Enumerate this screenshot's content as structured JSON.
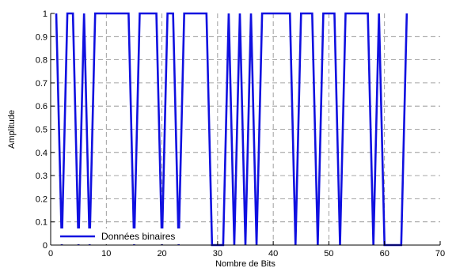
{
  "chart_data": {
    "type": "line",
    "xlabel": "Nombre de Bits",
    "ylabel": "Amplitude",
    "xlim": [
      0,
      70
    ],
    "ylim": [
      0,
      1
    ],
    "xticks": [
      "0",
      "10",
      "20",
      "30",
      "40",
      "50",
      "60",
      "70"
    ],
    "xtick_values": [
      0,
      10,
      20,
      30,
      40,
      50,
      60,
      70
    ],
    "yticks": [
      "0",
      "0.1",
      "0.2",
      "0.3",
      "0.4",
      "0.5",
      "0.6",
      "0.7",
      "0.8",
      "0.9",
      "1"
    ],
    "ytick_values": [
      0,
      0.1,
      0.2,
      0.3,
      0.4,
      0.5,
      0.6,
      0.7,
      0.8,
      0.9,
      1
    ],
    "grid": true,
    "legend_position": "bottom-left",
    "series": [
      {
        "name": "Données binaires",
        "color": "#1010e0",
        "x": [
          1,
          2,
          3,
          4,
          5,
          6,
          7,
          8,
          9,
          10,
          11,
          12,
          13,
          14,
          15,
          16,
          17,
          18,
          19,
          20,
          21,
          22,
          23,
          24,
          25,
          26,
          27,
          28,
          29,
          30,
          31,
          32,
          33,
          34,
          35,
          36,
          37,
          38,
          39,
          40,
          41,
          42,
          43,
          44,
          45,
          46,
          47,
          48,
          49,
          50,
          51,
          52,
          53,
          54,
          55,
          56,
          57,
          58,
          59,
          60,
          61,
          62,
          63,
          64
        ],
        "y": [
          1,
          0,
          1,
          1,
          0,
          1,
          0,
          1,
          1,
          1,
          1,
          1,
          1,
          1,
          0,
          1,
          1,
          1,
          1,
          0,
          1,
          1,
          0,
          1,
          1,
          1,
          1,
          1,
          0,
          0,
          0,
          1,
          0,
          1,
          0,
          1,
          0,
          1,
          1,
          1,
          1,
          1,
          1,
          0,
          1,
          1,
          1,
          0,
          1,
          1,
          1,
          0,
          1,
          1,
          1,
          1,
          1,
          0,
          1,
          0,
          0,
          0,
          0,
          1
        ]
      }
    ]
  },
  "colors": {
    "line": "#1010e0",
    "grid": "#888888",
    "axis": "#000000",
    "background": "#ffffff"
  }
}
